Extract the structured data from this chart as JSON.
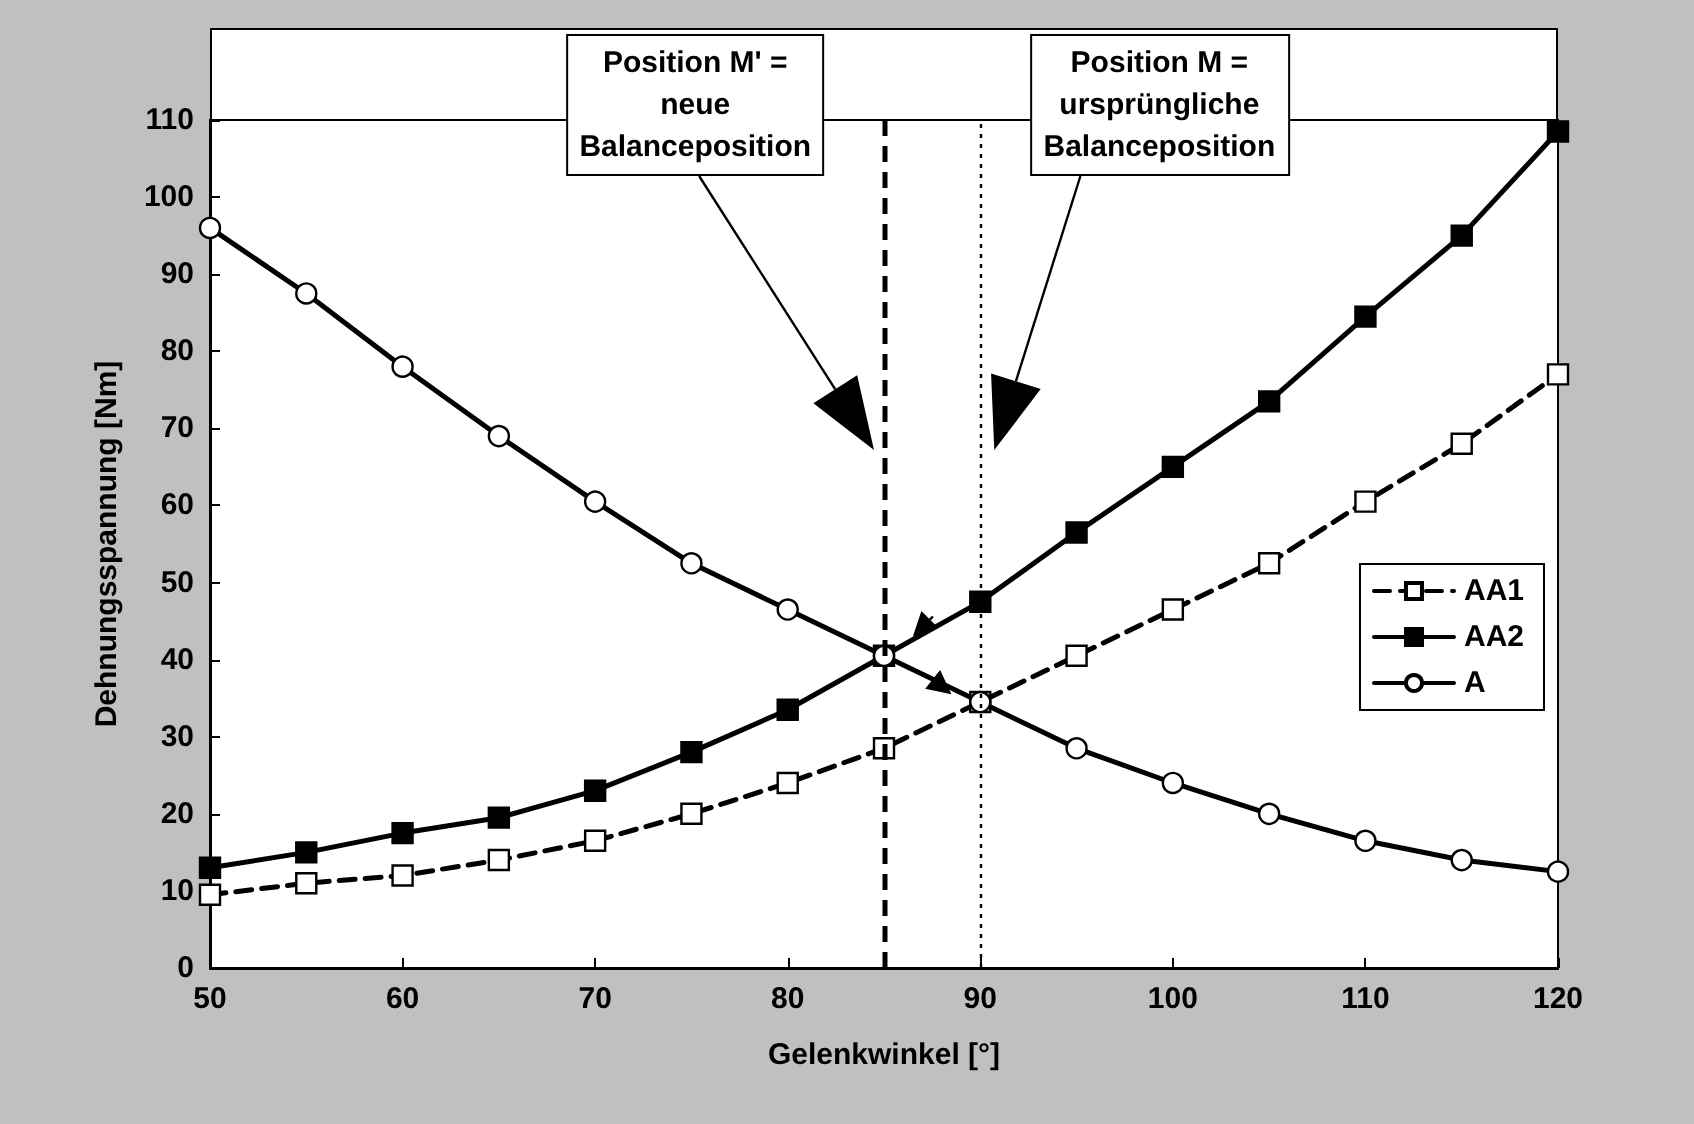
{
  "chart_data": {
    "type": "line",
    "xlabel": "Gelenkwinkel [°]",
    "ylabel": "Dehnungsspannung [Nm]",
    "x": [
      50,
      55,
      60,
      65,
      70,
      75,
      80,
      85,
      90,
      95,
      100,
      105,
      110,
      115,
      120
    ],
    "xlim": [
      50,
      120
    ],
    "xticks": [
      50,
      60,
      70,
      80,
      90,
      100,
      110,
      120
    ],
    "ylim": [
      0,
      110
    ],
    "yticks": [
      0,
      10,
      20,
      30,
      40,
      50,
      60,
      70,
      80,
      90,
      100,
      110
    ],
    "grid": false,
    "legend": "right",
    "series": [
      {
        "name": "AA1",
        "color": "#000000",
        "marker": "square",
        "line_style": "dashed",
        "values": [
          9.5,
          11,
          12,
          14,
          16.5,
          20,
          24,
          28.5,
          34.5,
          40.5,
          46.5,
          52.5,
          60.5,
          68,
          77
        ]
      },
      {
        "name": "AA2",
        "color": "#000000",
        "marker": "square",
        "line_style": "solid",
        "values": [
          13,
          15,
          17.5,
          19.5,
          23,
          28,
          33.5,
          40.5,
          47.5,
          56.5,
          65,
          73.5,
          84.5,
          95,
          108.5
        ]
      },
      {
        "name": "A",
        "color": "#000000",
        "marker": "circle",
        "line_style": "solid",
        "values": [
          96,
          87.5,
          78,
          69,
          60.5,
          52.5,
          46.5,
          40.5,
          34.5,
          28.5,
          24,
          20,
          16.5,
          14,
          12.5
        ]
      }
    ],
    "ref_lines": [
      {
        "axis": "x",
        "value": 85,
        "label": "Position M' =\nneue\nBalanceposition",
        "line_style": "dashed"
      },
      {
        "axis": "x",
        "value": 90,
        "label": "Position M =\nursprüngliche\nBalanceposition",
        "line_style": "dotted"
      }
    ]
  }
}
